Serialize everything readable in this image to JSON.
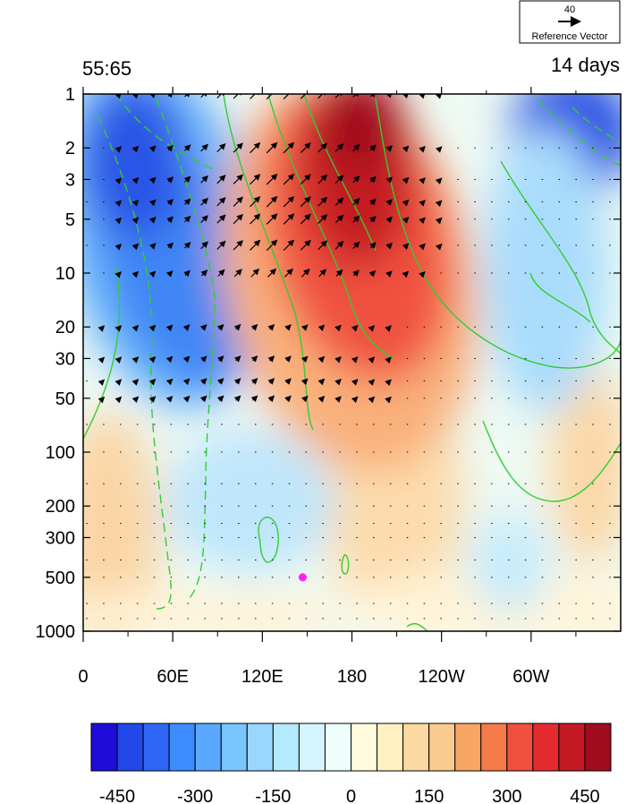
{
  "chart_data": {
    "type": "heatmap",
    "title_left": "55:65",
    "title_right": "14 days",
    "reference_vector": {
      "value": "40",
      "label": "Reference Vector"
    },
    "x_ticks": [
      "0",
      "60E",
      "120E",
      "180",
      "120W",
      "60W"
    ],
    "x_tick_lon": [
      0,
      60,
      120,
      180,
      240,
      300
    ],
    "x_range": [
      0,
      360
    ],
    "y_ticks": [
      "1",
      "2",
      "3",
      "5",
      "10",
      "20",
      "30",
      "50",
      "100",
      "200",
      "300",
      "500",
      "1000"
    ],
    "y_tick_values": [
      1,
      2,
      3,
      5,
      10,
      20,
      30,
      50,
      100,
      200,
      300,
      500,
      1000
    ],
    "y_range": [
      1,
      1000
    ],
    "y_scale": "log",
    "colorbar_labels": [
      "-450",
      "-300",
      "-150",
      "0",
      "150",
      "300",
      "450"
    ],
    "colorbar_colors": [
      "#1e0cd8",
      "#2347e8",
      "#2f66f5",
      "#3c8cff",
      "#5aa8ff",
      "#78c4ff",
      "#9ad6ff",
      "#b4eaff",
      "#d4f5ff",
      "#eefffb",
      "#fffbdc",
      "#fff0c2",
      "#fcd9a2",
      "#facb8e",
      "#f7a664",
      "#f57b4a",
      "#f0503e",
      "#e42c30",
      "#c51a24",
      "#a00b1e"
    ],
    "colorbar_range": [
      -500,
      500
    ],
    "marker": {
      "lon": 147,
      "pressure": 500,
      "color": "#ff22ee"
    }
  }
}
